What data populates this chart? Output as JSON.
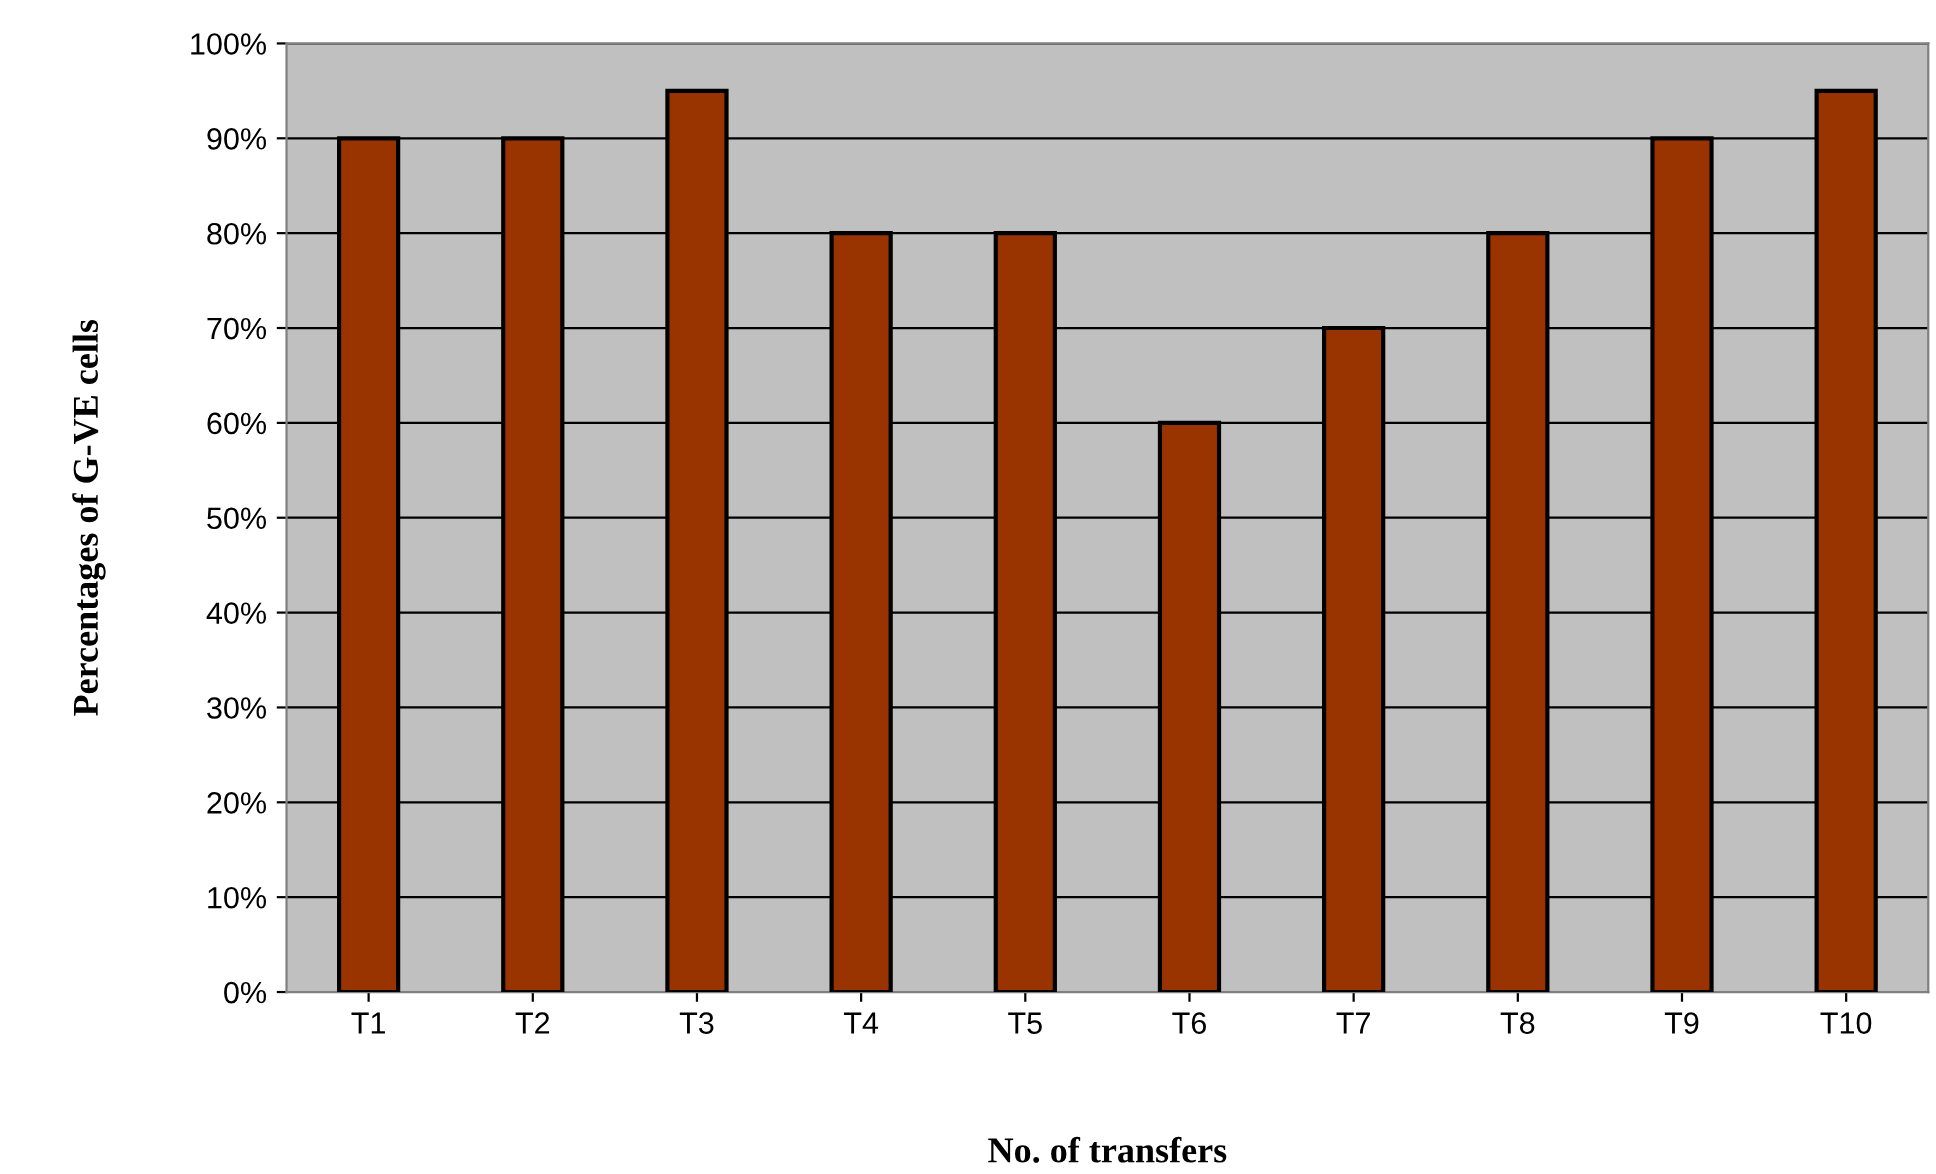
{
  "chart_data": {
    "type": "bar",
    "xlabel": "No. of transfers",
    "ylabel": "Percentages of G-VE cells",
    "categories": [
      "T1",
      "T2",
      "T3",
      "T4",
      "T5",
      "T6",
      "T7",
      "T8",
      "T9",
      "T10"
    ],
    "values": [
      90,
      90,
      95,
      80,
      80,
      60,
      70,
      80,
      90,
      95
    ],
    "color": "#993300",
    "ylim": [
      0,
      100
    ],
    "yticks": [
      {
        "value": 0,
        "label": "0%"
      },
      {
        "value": 10,
        "label": "10%"
      },
      {
        "value": 20,
        "label": "20%"
      },
      {
        "value": 30,
        "label": "30%"
      },
      {
        "value": 40,
        "label": "40%"
      },
      {
        "value": 50,
        "label": "50%"
      },
      {
        "value": 60,
        "label": "60%"
      },
      {
        "value": 70,
        "label": "70%"
      },
      {
        "value": 80,
        "label": "80%"
      },
      {
        "value": 90,
        "label": "90%"
      },
      {
        "value": 100,
        "label": "100%"
      }
    ],
    "grid": "y",
    "legend": false
  }
}
